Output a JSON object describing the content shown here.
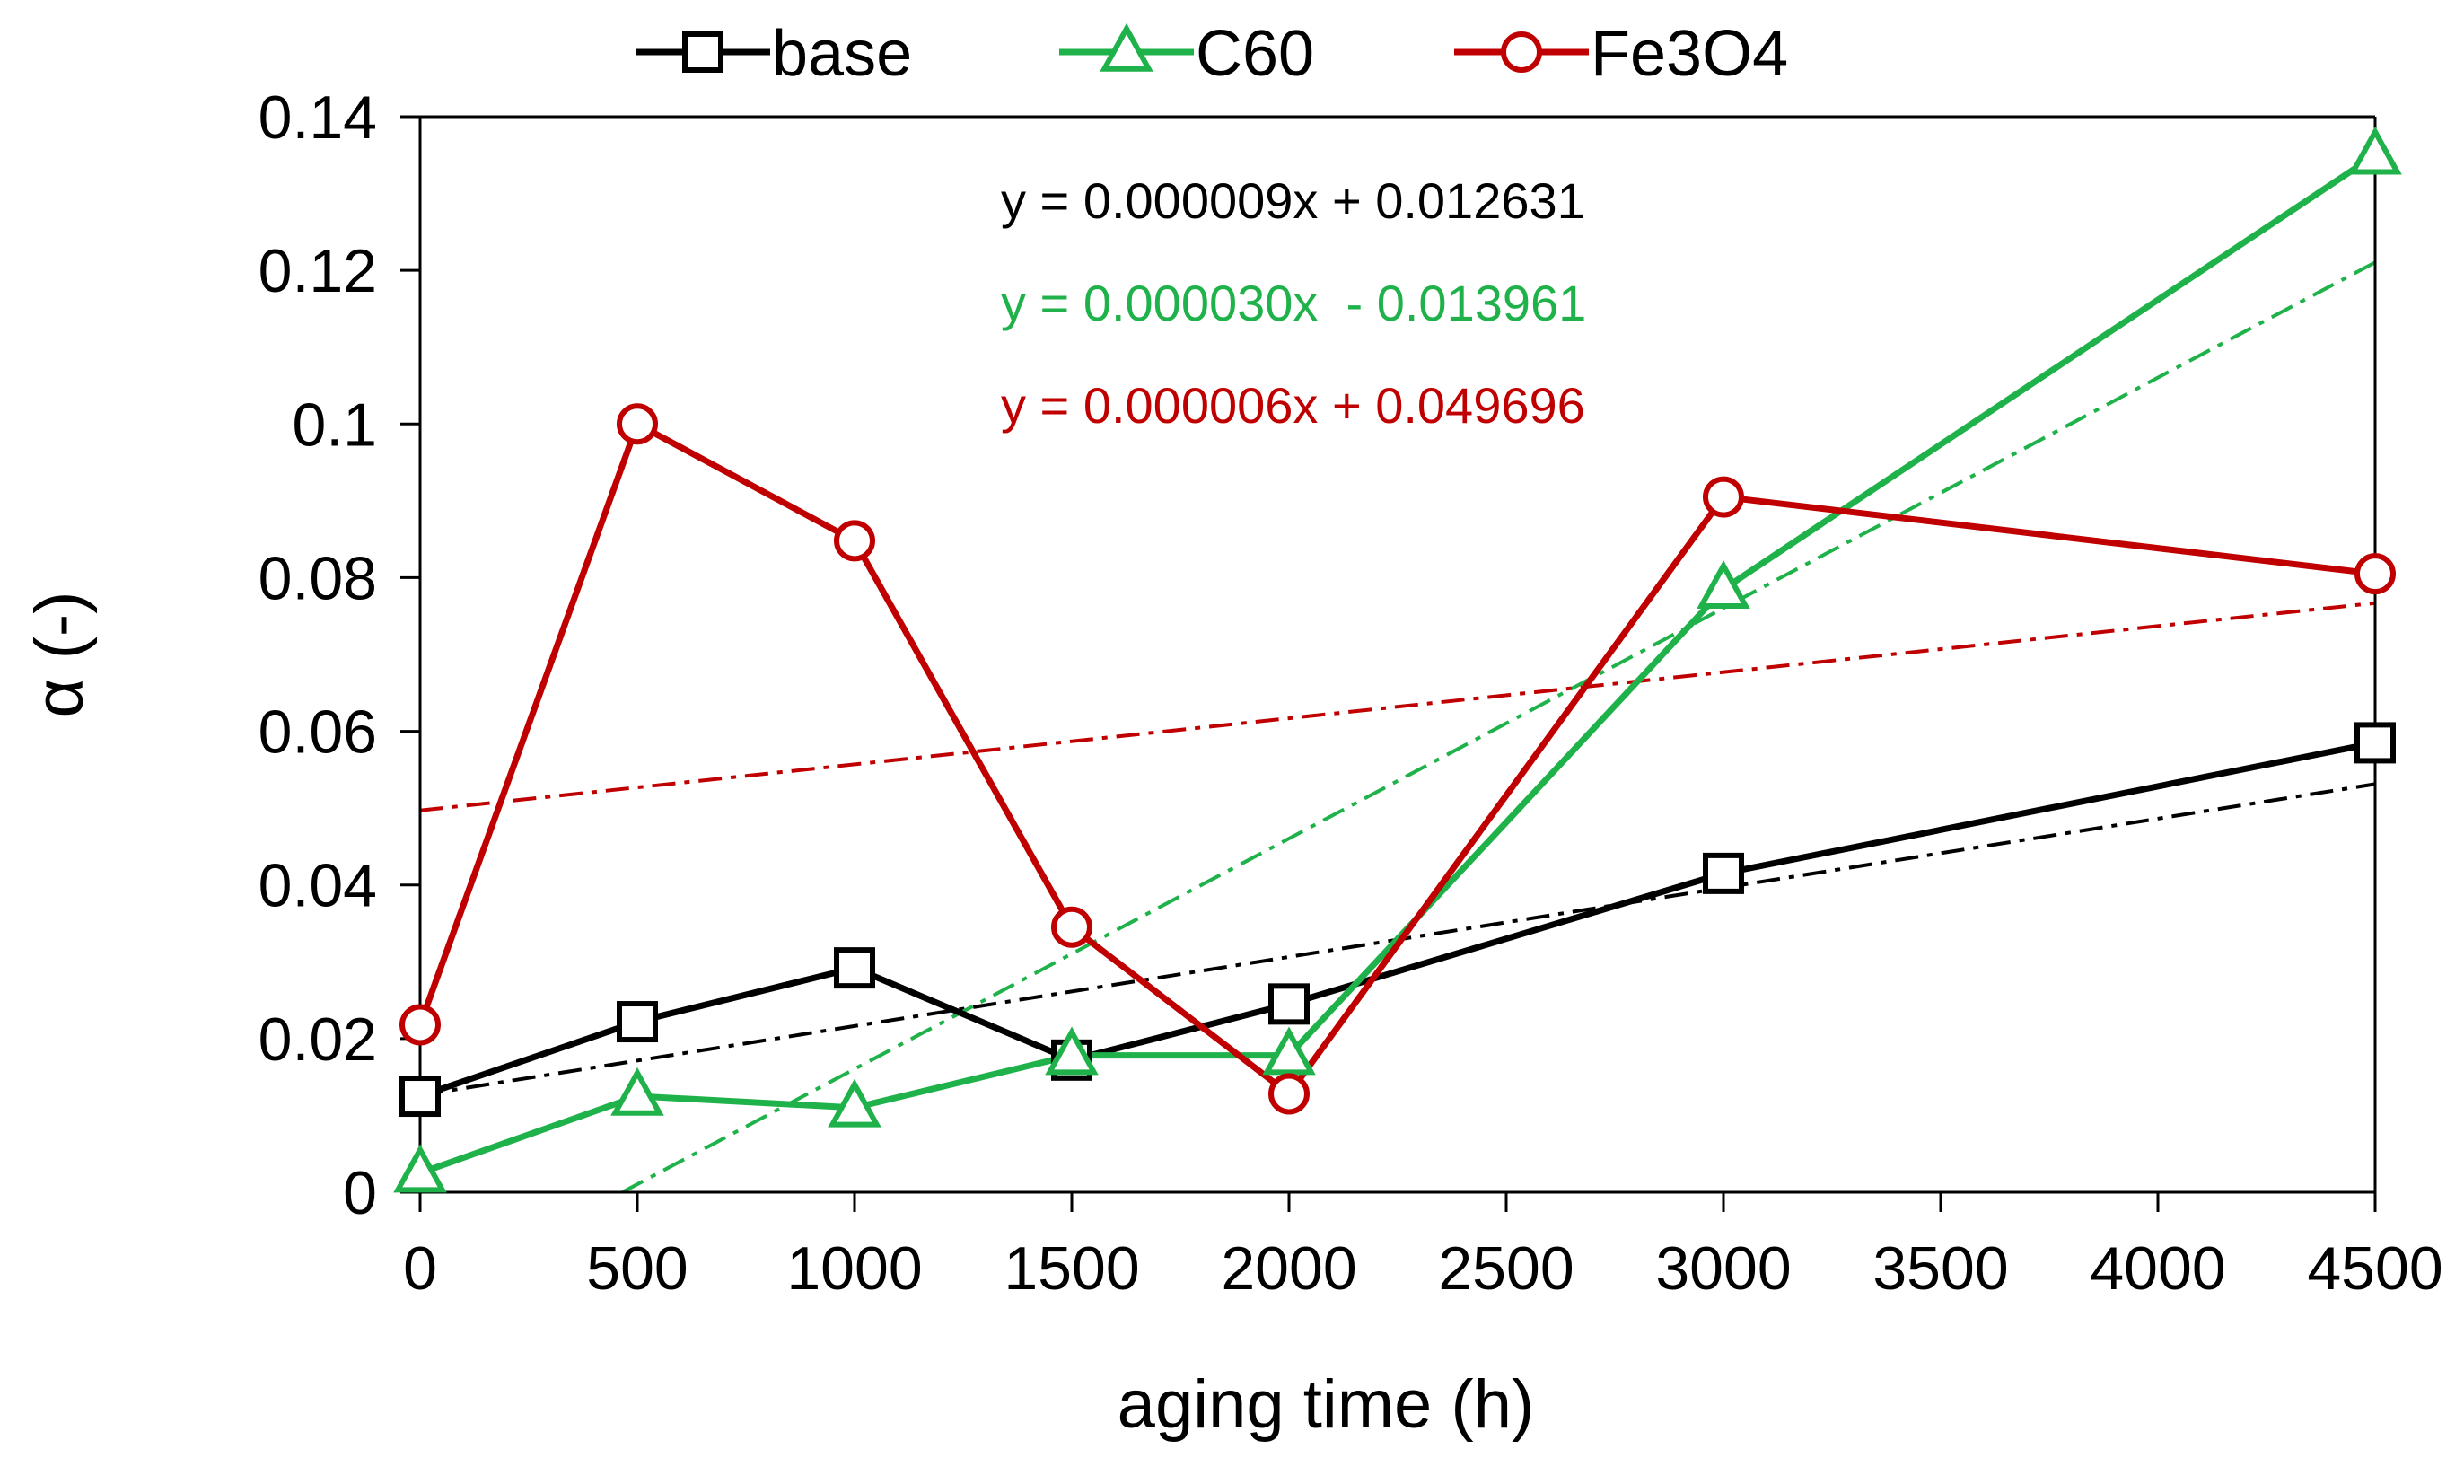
{
  "chart_data": {
    "type": "line",
    "title": "",
    "xlabel": "aging time (h)",
    "ylabel": "α (-)",
    "xlim": [
      0,
      4500
    ],
    "ylim": [
      0,
      0.14
    ],
    "grid": false,
    "legend_position": "top",
    "x_ticks": [
      0,
      500,
      1000,
      1500,
      2000,
      2500,
      3000,
      3500,
      4000,
      4500
    ],
    "x_tick_labels": [
      "0",
      "500",
      "1000",
      "1500",
      "2000",
      "2500",
      "3000",
      "3500",
      "4000",
      "4500"
    ],
    "y_ticks": [
      0,
      0.02,
      0.04,
      0.06,
      0.08,
      0.1,
      0.12,
      0.14
    ],
    "y_tick_labels": [
      "0",
      "0.02",
      "0.04",
      "0.06",
      "0.08",
      "0.1",
      "0.12",
      "0.14"
    ],
    "x": [
      0,
      500,
      1000,
      1500,
      2000,
      3000,
      4500
    ],
    "series": [
      {
        "name": "base",
        "color": "#000000",
        "marker": "square",
        "values": [
          0.0125,
          0.0222,
          0.0292,
          0.0172,
          0.0245,
          0.0415,
          0.0585
        ],
        "trendline": {
          "slope": 9e-06,
          "intercept": 0.012631,
          "equation": "y = 0.000009x + 0.012631",
          "color": "#000000"
        }
      },
      {
        "name": "C60",
        "color": "#1fb24a",
        "marker": "triangle",
        "values": [
          0.0025,
          0.0125,
          0.011,
          0.0178,
          0.0178,
          0.0785,
          0.135
        ],
        "trendline": {
          "slope": 3e-05,
          "intercept": -0.013961,
          "equation": "y = 0.000030x  - 0.013961",
          "color": "#1fb24a"
        }
      },
      {
        "name": "Fe3O4",
        "color": "#c00000",
        "marker": "circle",
        "values": [
          0.0218,
          0.1,
          0.0848,
          0.0345,
          0.0128,
          0.0905,
          0.0805
        ],
        "trendline": {
          "slope": 6e-06,
          "intercept": 0.049696,
          "equation": "y = 0.000006x + 0.049696",
          "color": "#c00000"
        }
      }
    ]
  }
}
